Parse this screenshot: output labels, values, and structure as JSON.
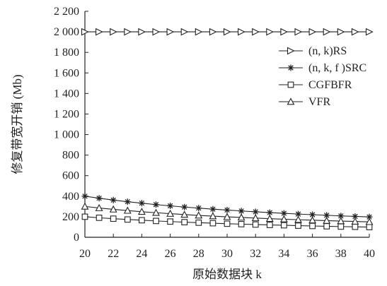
{
  "chart_data": {
    "type": "line",
    "title": "",
    "xlabel": "原始数据块 k",
    "ylabel": "修复带宽开销 (Mb)",
    "xlim": [
      20,
      40
    ],
    "ylim": [
      0,
      2200
    ],
    "x_ticks": [
      20,
      22,
      24,
      26,
      28,
      30,
      32,
      34,
      36,
      38,
      40
    ],
    "y_ticks": [
      0,
      200,
      400,
      600,
      800,
      1000,
      1200,
      1400,
      1600,
      1800,
      2000,
      2200
    ],
    "x_tick_labels": [
      "20",
      "22",
      "24",
      "26",
      "28",
      "30",
      "32",
      "34",
      "36",
      "38",
      "40"
    ],
    "y_tick_labels": [
      "0",
      "200",
      "400",
      "600",
      "800",
      "1 000",
      "1 200",
      "1 400",
      "1 600",
      "1 800",
      "2 000",
      "2 200"
    ],
    "grid": false,
    "legend_position": "top-right",
    "x": [
      20,
      21,
      22,
      23,
      24,
      25,
      26,
      27,
      28,
      29,
      30,
      31,
      32,
      33,
      34,
      35,
      36,
      37,
      38,
      39,
      40
    ],
    "series": [
      {
        "name": "(n, k)RS",
        "marker": "triangle-right",
        "values": [
          2000,
          2000,
          2000,
          2000,
          2000,
          2000,
          2000,
          2000,
          2000,
          2000,
          2000,
          2000,
          2000,
          2000,
          2000,
          2000,
          2000,
          2000,
          2000,
          2000,
          2000
        ]
      },
      {
        "name": "(n, k, f )SRC",
        "marker": "star",
        "values": [
          400,
          380,
          362,
          346,
          332,
          318,
          306,
          294,
          284,
          274,
          265,
          256,
          248,
          240,
          233,
          226,
          220,
          214,
          208,
          203,
          198
        ]
      },
      {
        "name": "CGFBFR",
        "marker": "square",
        "values": [
          200,
          190,
          181,
          173,
          166,
          159,
          153,
          147,
          142,
          137,
          132,
          128,
          124,
          120,
          117,
          113,
          110,
          107,
          104,
          102,
          99
        ]
      },
      {
        "name": "VFR",
        "marker": "triangle-up",
        "values": [
          300,
          285,
          272,
          260,
          249,
          239,
          230,
          221,
          213,
          206,
          199,
          193,
          187,
          181,
          176,
          171,
          166,
          162,
          158,
          154,
          150
        ]
      }
    ]
  }
}
